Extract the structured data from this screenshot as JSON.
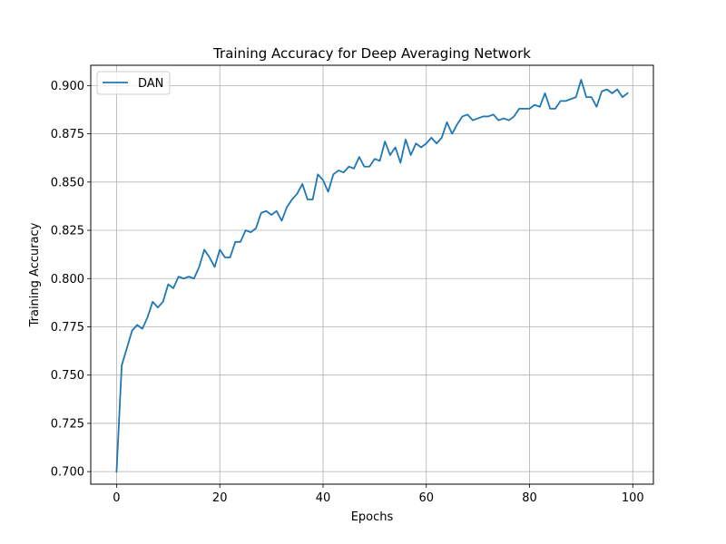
{
  "chart_data": {
    "type": "line",
    "title": "Training Accuracy for Deep Averaging Network",
    "xlabel": "Epochs",
    "ylabel": "Training Accuracy",
    "xlim": [
      -5,
      104
    ],
    "ylim": [
      0.6935,
      0.9105
    ],
    "xticks": [
      0,
      20,
      40,
      60,
      80,
      100
    ],
    "yticks": [
      0.7,
      0.725,
      0.75,
      0.775,
      0.8,
      0.825,
      0.85,
      0.875,
      0.9
    ],
    "xtick_labels": [
      "0",
      "20",
      "40",
      "60",
      "80",
      "100"
    ],
    "ytick_labels": [
      "0.700",
      "0.725",
      "0.750",
      "0.775",
      "0.800",
      "0.825",
      "0.850",
      "0.875",
      "0.900"
    ],
    "grid": true,
    "legend": "upper-left",
    "series": [
      {
        "name": "DAN",
        "color": "#1f77b4",
        "x": [
          0,
          1,
          2,
          3,
          4,
          5,
          6,
          7,
          8,
          9,
          10,
          11,
          12,
          13,
          14,
          15,
          16,
          17,
          18,
          19,
          20,
          21,
          22,
          23,
          24,
          25,
          26,
          27,
          28,
          29,
          30,
          31,
          32,
          33,
          34,
          35,
          36,
          37,
          38,
          39,
          40,
          41,
          42,
          43,
          44,
          45,
          46,
          47,
          48,
          49,
          50,
          51,
          52,
          53,
          54,
          55,
          56,
          57,
          58,
          59,
          60,
          61,
          62,
          63,
          64,
          65,
          66,
          67,
          68,
          69,
          70,
          71,
          72,
          73,
          74,
          75,
          76,
          77,
          78,
          79,
          80,
          81,
          82,
          83,
          84,
          85,
          86,
          87,
          88,
          89,
          90,
          91,
          92,
          93,
          94,
          95,
          96,
          97,
          98,
          99
        ],
        "values": [
          0.7,
          0.755,
          0.764,
          0.773,
          0.776,
          0.774,
          0.78,
          0.788,
          0.785,
          0.788,
          0.797,
          0.795,
          0.801,
          0.8,
          0.801,
          0.8,
          0.806,
          0.815,
          0.811,
          0.806,
          0.815,
          0.811,
          0.811,
          0.819,
          0.819,
          0.825,
          0.824,
          0.826,
          0.834,
          0.835,
          0.833,
          0.835,
          0.83,
          0.837,
          0.841,
          0.844,
          0.849,
          0.841,
          0.841,
          0.854,
          0.851,
          0.845,
          0.854,
          0.856,
          0.855,
          0.858,
          0.857,
          0.863,
          0.858,
          0.858,
          0.862,
          0.861,
          0.871,
          0.864,
          0.868,
          0.86,
          0.872,
          0.864,
          0.87,
          0.868,
          0.87,
          0.873,
          0.87,
          0.873,
          0.881,
          0.875,
          0.88,
          0.884,
          0.885,
          0.882,
          0.883,
          0.884,
          0.884,
          0.885,
          0.882,
          0.883,
          0.882,
          0.884,
          0.888,
          0.888,
          0.888,
          0.89,
          0.889,
          0.896,
          0.888,
          0.888,
          0.892,
          0.892,
          0.893,
          0.894,
          0.903,
          0.894,
          0.894,
          0.889,
          0.897,
          0.898,
          0.896,
          0.898,
          0.894,
          0.896
        ]
      }
    ]
  }
}
